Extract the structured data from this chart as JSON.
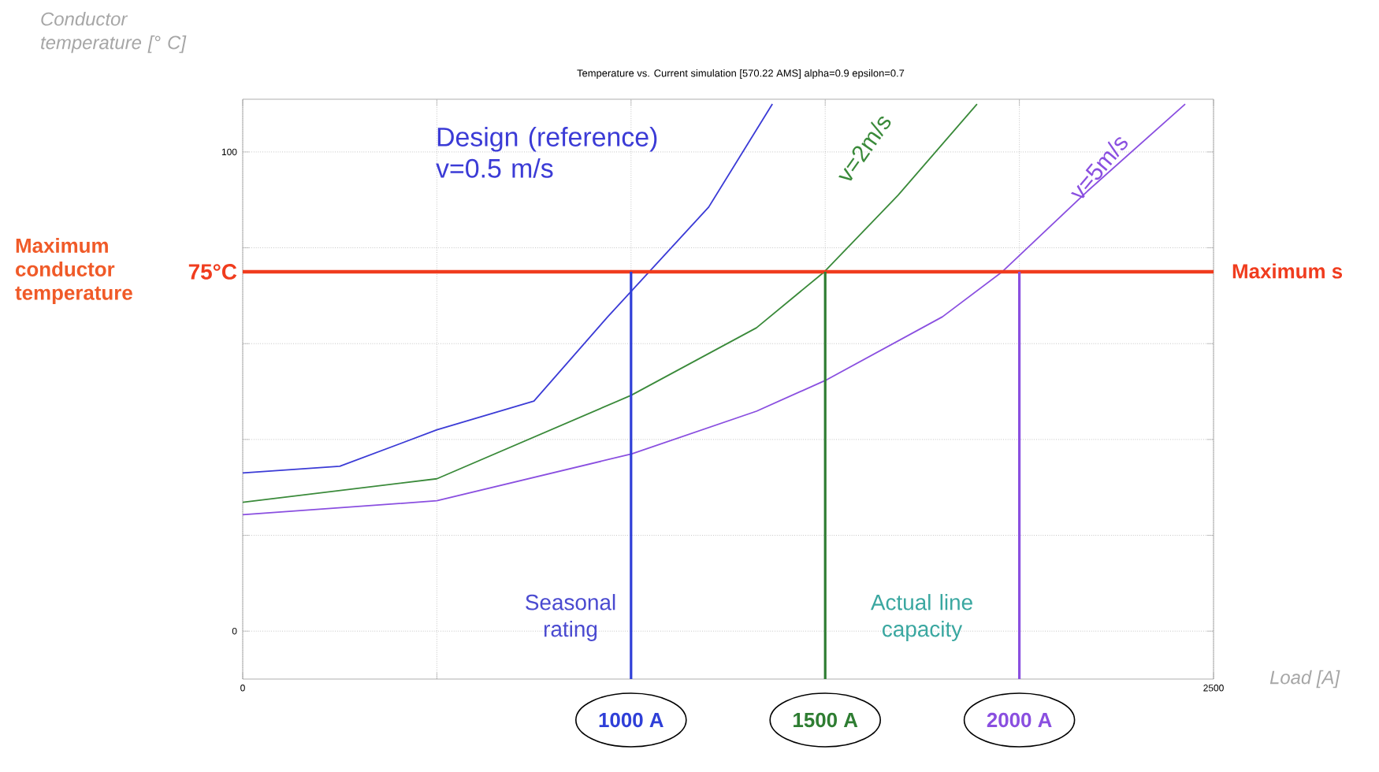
{
  "chart_data": {
    "type": "line",
    "title": "Temperature vs. Current simulation [570.22 AMS] alpha=0.9 epsilon=0.7",
    "xlabel": "Load [A]",
    "ylabel": "Conductor temperature [° C]",
    "xlim": [
      0,
      2500
    ],
    "ylim": [
      -10,
      111
    ],
    "xticks": [
      0,
      {
        "value": 500,
        "label": null
      },
      {
        "value": 1000,
        "label": null
      },
      {
        "value": 1500,
        "label": null
      },
      {
        "value": 2000,
        "label": null
      },
      2500
    ],
    "yticks": [
      0,
      {
        "value": 20,
        "label": null
      },
      {
        "value": 40,
        "label": null
      },
      {
        "value": 60,
        "label": null
      },
      {
        "value": 80,
        "label": null
      },
      100
    ],
    "grid": true,
    "marker": "none",
    "line_style": "solid",
    "series": [
      {
        "name": "Design (reference) v=0.5 m/s",
        "color": "#3b3bd6",
        "x": [
          0,
          250,
          500,
          750,
          940,
          1047,
          1200,
          1364
        ],
        "values": [
          33,
          34.4,
          42,
          48,
          65.6,
          75,
          88.5,
          110
        ]
      },
      {
        "name": "v=2m/s",
        "color": "#3a8a3a",
        "x": [
          0,
          500,
          1000,
          1323,
          1498,
          1688,
          1891
        ],
        "values": [
          26.9,
          31.8,
          49.2,
          63.3,
          75,
          91,
          110
        ]
      },
      {
        "name": "v=5m/s",
        "color": "#8a4fe0",
        "x": [
          0,
          500,
          1002,
          1323,
          1505,
          1802,
          1956,
          2175,
          2427
        ],
        "values": [
          24.3,
          27.2,
          37,
          45.9,
          52.5,
          65.6,
          75,
          91.8,
          110
        ]
      }
    ],
    "ref_lines": [
      {
        "axis": "y",
        "value": 75,
        "label": "75°C",
        "color": "#f03c1e"
      },
      {
        "axis": "x",
        "value": 1000,
        "label": "1000 A",
        "color": "#2f3fd8"
      },
      {
        "axis": "x",
        "value": 1500,
        "label": "1500 A",
        "color": "#2e7d32"
      },
      {
        "axis": "x",
        "value": 2000,
        "label": "2000 A",
        "color": "#8a4fe0"
      }
    ],
    "annotations": [
      "Maximum conductor temperature",
      "Maximum s",
      "Seasonal rating",
      "Actual line capacity"
    ]
  }
}
